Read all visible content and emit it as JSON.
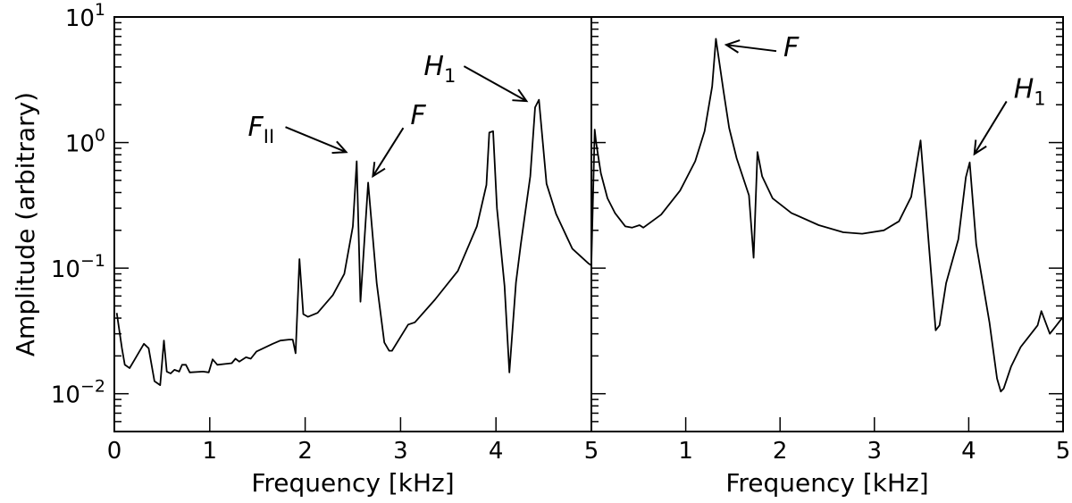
{
  "chart_data": [
    {
      "type": "line",
      "xlabel": "Frequency [kHz]",
      "ylabel": "Amplitude (arbitrary)",
      "xlim": [
        0,
        5
      ],
      "ylim": [
        0.005,
        10
      ],
      "yscale": "log",
      "grid": false,
      "line_color": "#000000",
      "xticks": [
        "0",
        "1",
        "2",
        "3",
        "4",
        "5"
      ],
      "yticks": [
        {
          "base": "10",
          "exp": "1"
        },
        {
          "base": "10",
          "exp": "0"
        },
        {
          "base": "10",
          "exp": "−1"
        },
        {
          "base": "10",
          "exp": "−2"
        }
      ],
      "x": [
        0.025,
        0.08,
        0.11,
        0.16,
        0.21,
        0.31,
        0.36,
        0.42,
        0.48,
        0.52,
        0.55,
        0.59,
        0.63,
        0.68,
        0.71,
        0.75,
        0.79,
        0.93,
        0.99,
        1.03,
        1.08,
        1.23,
        1.27,
        1.31,
        1.38,
        1.43,
        1.49,
        1.66,
        1.74,
        1.83,
        1.87,
        1.9,
        1.94,
        1.98,
        2.03,
        2.13,
        2.29,
        2.41,
        2.5,
        2.54,
        2.58,
        2.66,
        2.75,
        2.83,
        2.88,
        2.91,
        3.08,
        3.15,
        3.36,
        3.6,
        3.8,
        3.9,
        3.93,
        3.97,
        4.01,
        4.09,
        4.14,
        4.21,
        4.26,
        4.36,
        4.41,
        4.45,
        4.53,
        4.63,
        4.8,
        4.97,
        5.0
      ],
      "y": [
        0.044,
        0.023,
        0.017,
        0.016,
        0.0185,
        0.025,
        0.023,
        0.0126,
        0.0117,
        0.0265,
        0.015,
        0.0145,
        0.0155,
        0.015,
        0.017,
        0.017,
        0.0148,
        0.015,
        0.0148,
        0.0188,
        0.017,
        0.0175,
        0.019,
        0.018,
        0.0195,
        0.019,
        0.0217,
        0.025,
        0.0265,
        0.027,
        0.027,
        0.021,
        0.118,
        0.043,
        0.041,
        0.044,
        0.061,
        0.09,
        0.215,
        0.71,
        0.054,
        0.48,
        0.076,
        0.0256,
        0.022,
        0.022,
        0.0355,
        0.037,
        0.056,
        0.095,
        0.215,
        0.46,
        1.2,
        1.23,
        0.3,
        0.072,
        0.0148,
        0.077,
        0.155,
        0.54,
        1.91,
        2.19,
        0.47,
        0.27,
        0.143,
        0.109,
        0.105
      ],
      "annotations": [
        {
          "label": "F",
          "sub": "II",
          "xy": [
            2.43,
            0.84
          ]
        },
        {
          "label": "F",
          "sub": "",
          "xy": [
            2.71,
            0.54
          ]
        },
        {
          "label": "H",
          "sub": "1",
          "xy": [
            4.32,
            2.14
          ]
        }
      ]
    },
    {
      "type": "line",
      "xlabel": "Frequency [kHz]",
      "ylabel": "",
      "xlim": [
        0,
        5
      ],
      "ylim": [
        0.005,
        10
      ],
      "yscale": "log",
      "grid": false,
      "line_color": "#000000",
      "xticks": [
        "",
        "1",
        "2",
        "3",
        "4",
        "5"
      ],
      "x": [
        0.0,
        0.035,
        0.05,
        0.1,
        0.17,
        0.25,
        0.36,
        0.43,
        0.51,
        0.55,
        0.74,
        0.94,
        1.1,
        1.2,
        1.28,
        1.32,
        1.4,
        1.46,
        1.54,
        1.67,
        1.72,
        1.76,
        1.81,
        1.92,
        2.12,
        2.41,
        2.67,
        2.87,
        3.1,
        3.26,
        3.39,
        3.49,
        3.58,
        3.65,
        3.69,
        3.76,
        3.89,
        3.97,
        4.01,
        4.08,
        4.22,
        4.3,
        4.34,
        4.37,
        4.45,
        4.55,
        4.73,
        4.77,
        4.86,
        4.93,
        5.0
      ],
      "y": [
        0.11,
        1.27,
        1.0,
        0.57,
        0.36,
        0.275,
        0.215,
        0.21,
        0.22,
        0.21,
        0.267,
        0.415,
        0.71,
        1.23,
        2.8,
        6.7,
        2.6,
        1.31,
        0.75,
        0.38,
        0.121,
        0.84,
        0.54,
        0.36,
        0.275,
        0.22,
        0.193,
        0.188,
        0.2,
        0.236,
        0.37,
        1.04,
        0.146,
        0.032,
        0.035,
        0.076,
        0.17,
        0.53,
        0.695,
        0.155,
        0.037,
        0.0132,
        0.0104,
        0.011,
        0.0165,
        0.0235,
        0.035,
        0.0455,
        0.03,
        0.035,
        0.041
      ],
      "annotations": [
        {
          "label": "F",
          "sub": "",
          "xy": [
            1.43,
            6.0
          ]
        },
        {
          "label": "H",
          "sub": "1",
          "xy": [
            4.06,
            0.81
          ]
        }
      ]
    }
  ]
}
